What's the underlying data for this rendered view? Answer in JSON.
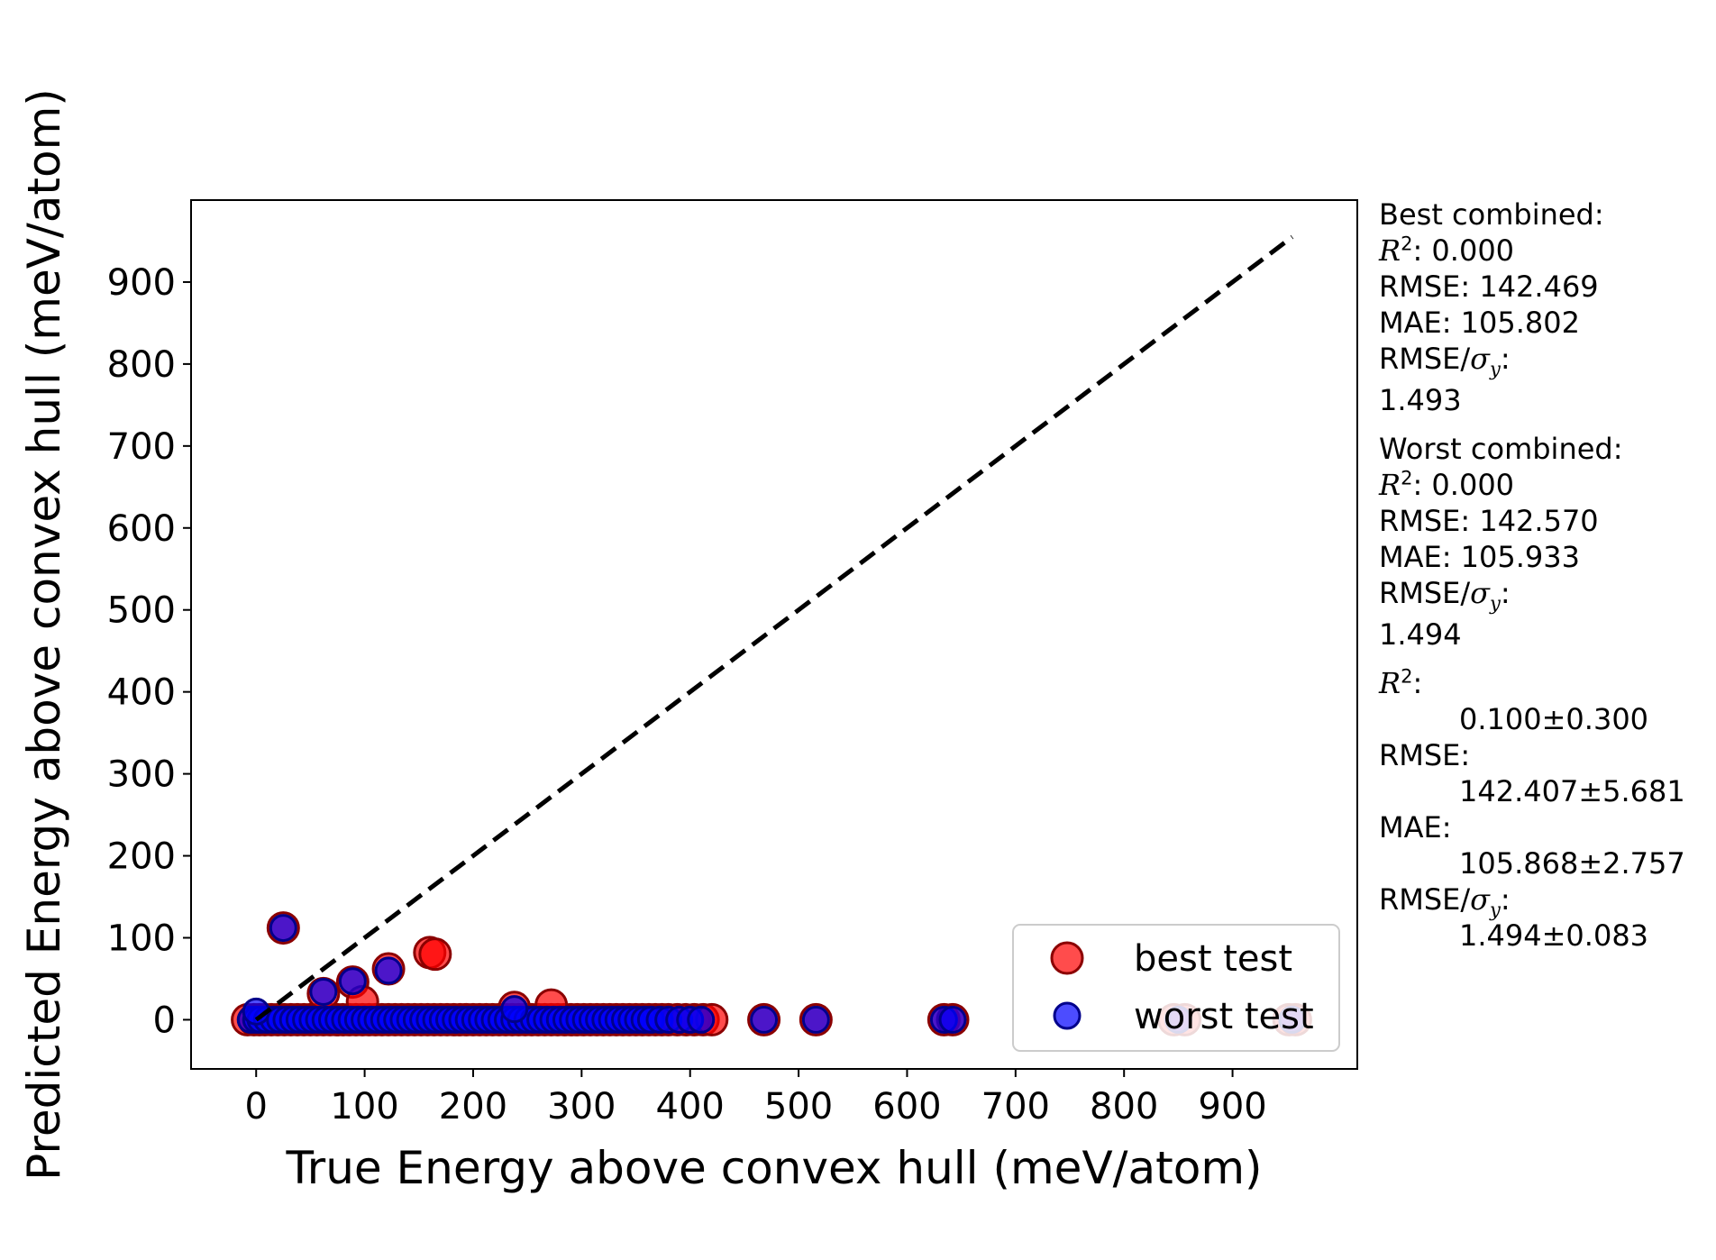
{
  "chart_data": {
    "type": "scatter",
    "xlabel": "True Energy above convex hull (meV/atom)",
    "ylabel": "Predicted Energy above convex hull (meV/atom)",
    "xlim": [
      -60,
      1015
    ],
    "ylim": [
      -60,
      1000
    ],
    "xticks": [
      0,
      100,
      200,
      300,
      400,
      500,
      600,
      700,
      800,
      900
    ],
    "yticks": [
      0,
      100,
      200,
      300,
      400,
      500,
      600,
      700,
      800,
      900
    ],
    "xtick_labels": [
      "0",
      "100",
      "200",
      "300",
      "400",
      "500",
      "600",
      "700",
      "800",
      "900"
    ],
    "ytick_labels": [
      "0",
      "100",
      "200",
      "300",
      "400",
      "500",
      "600",
      "700",
      "800",
      "900"
    ],
    "grid": false,
    "legend_position": "lower-right",
    "reference_line": {
      "style": "dashed",
      "color": "#000000",
      "from": [
        0,
        0
      ],
      "to": [
        955,
        955
      ]
    },
    "series": [
      {
        "name": "best test",
        "color": "#ff0000",
        "edge_color": "#8b0000",
        "points": [
          [
            -8,
            0
          ],
          [
            -2,
            0
          ],
          [
            3,
            0
          ],
          [
            8,
            0
          ],
          [
            14,
            0
          ],
          [
            20,
            0
          ],
          [
            26,
            0
          ],
          [
            32,
            0
          ],
          [
            38,
            0
          ],
          [
            44,
            0
          ],
          [
            50,
            0
          ],
          [
            56,
            0
          ],
          [
            62,
            0
          ],
          [
            68,
            0
          ],
          [
            74,
            0
          ],
          [
            80,
            0
          ],
          [
            86,
            0
          ],
          [
            92,
            0
          ],
          [
            98,
            0
          ],
          [
            104,
            0
          ],
          [
            110,
            0
          ],
          [
            116,
            0
          ],
          [
            122,
            0
          ],
          [
            128,
            0
          ],
          [
            134,
            0
          ],
          [
            140,
            0
          ],
          [
            146,
            0
          ],
          [
            152,
            0
          ],
          [
            158,
            0
          ],
          [
            164,
            0
          ],
          [
            170,
            0
          ],
          [
            176,
            0
          ],
          [
            182,
            0
          ],
          [
            188,
            0
          ],
          [
            194,
            0
          ],
          [
            200,
            0
          ],
          [
            206,
            0
          ],
          [
            212,
            0
          ],
          [
            218,
            0
          ],
          [
            224,
            0
          ],
          [
            230,
            0
          ],
          [
            236,
            0
          ],
          [
            242,
            0
          ],
          [
            248,
            0
          ],
          [
            254,
            0
          ],
          [
            260,
            0
          ],
          [
            266,
            0
          ],
          [
            272,
            0
          ],
          [
            278,
            0
          ],
          [
            284,
            0
          ],
          [
            290,
            0
          ],
          [
            296,
            0
          ],
          [
            302,
            0
          ],
          [
            308,
            0
          ],
          [
            314,
            0
          ],
          [
            320,
            0
          ],
          [
            326,
            0
          ],
          [
            332,
            0
          ],
          [
            338,
            0
          ],
          [
            344,
            0
          ],
          [
            350,
            0
          ],
          [
            356,
            0
          ],
          [
            362,
            0
          ],
          [
            368,
            0
          ],
          [
            374,
            0
          ],
          [
            380,
            0
          ],
          [
            388,
            0
          ],
          [
            396,
            0
          ],
          [
            404,
            0
          ],
          [
            412,
            0
          ],
          [
            420,
            0
          ],
          [
            468,
            0
          ],
          [
            516,
            0
          ],
          [
            634,
            0
          ],
          [
            642,
            0
          ],
          [
            846,
            0
          ],
          [
            856,
            0
          ],
          [
            952,
            0
          ],
          [
            958,
            0
          ],
          [
            25,
            112
          ],
          [
            62,
            32
          ],
          [
            89,
            46
          ],
          [
            98,
            22
          ],
          [
            122,
            62
          ],
          [
            160,
            82
          ],
          [
            165,
            80
          ],
          [
            238,
            15
          ],
          [
            272,
            18
          ]
        ]
      },
      {
        "name": "worst test",
        "color": "#0000ff",
        "edge_color": "#00008b",
        "points": [
          [
            -5,
            0
          ],
          [
            0,
            0
          ],
          [
            4,
            0
          ],
          [
            10,
            0
          ],
          [
            16,
            0
          ],
          [
            22,
            0
          ],
          [
            28,
            0
          ],
          [
            34,
            0
          ],
          [
            40,
            0
          ],
          [
            46,
            0
          ],
          [
            52,
            0
          ],
          [
            58,
            0
          ],
          [
            64,
            0
          ],
          [
            70,
            0
          ],
          [
            76,
            0
          ],
          [
            82,
            0
          ],
          [
            88,
            0
          ],
          [
            94,
            0
          ],
          [
            100,
            0
          ],
          [
            106,
            0
          ],
          [
            112,
            0
          ],
          [
            118,
            0
          ],
          [
            124,
            0
          ],
          [
            130,
            0
          ],
          [
            136,
            0
          ],
          [
            142,
            0
          ],
          [
            148,
            0
          ],
          [
            154,
            0
          ],
          [
            160,
            0
          ],
          [
            166,
            0
          ],
          [
            172,
            0
          ],
          [
            178,
            0
          ],
          [
            184,
            0
          ],
          [
            190,
            0
          ],
          [
            196,
            0
          ],
          [
            202,
            0
          ],
          [
            208,
            0
          ],
          [
            214,
            0
          ],
          [
            220,
            0
          ],
          [
            226,
            0
          ],
          [
            232,
            0
          ],
          [
            238,
            0
          ],
          [
            244,
            0
          ],
          [
            250,
            0
          ],
          [
            256,
            0
          ],
          [
            262,
            0
          ],
          [
            268,
            0
          ],
          [
            274,
            0
          ],
          [
            280,
            0
          ],
          [
            286,
            0
          ],
          [
            292,
            0
          ],
          [
            298,
            0
          ],
          [
            304,
            0
          ],
          [
            310,
            0
          ],
          [
            316,
            0
          ],
          [
            322,
            0
          ],
          [
            328,
            0
          ],
          [
            334,
            0
          ],
          [
            340,
            0
          ],
          [
            346,
            0
          ],
          [
            352,
            0
          ],
          [
            358,
            0
          ],
          [
            364,
            0
          ],
          [
            372,
            0
          ],
          [
            380,
            0
          ],
          [
            390,
            0
          ],
          [
            400,
            0
          ],
          [
            410,
            0
          ],
          [
            468,
            0
          ],
          [
            516,
            0
          ],
          [
            634,
            0
          ],
          [
            642,
            0
          ],
          [
            850,
            0
          ],
          [
            955,
            0
          ],
          [
            0,
            10
          ],
          [
            25,
            112
          ],
          [
            62,
            34
          ],
          [
            89,
            47
          ],
          [
            122,
            60
          ],
          [
            238,
            13
          ]
        ]
      }
    ]
  },
  "stats": {
    "best_heading": "Best combined:",
    "best_r2": ": 0.000",
    "best_rmse": "RMSE: 142.469",
    "best_mae": "MAE: 105.802",
    "best_ratio_label": ":",
    "best_ratio_value": "1.493",
    "worst_heading": "Worst combined:",
    "worst_r2": ": 0.000",
    "worst_rmse": "RMSE: 142.570",
    "worst_mae": "MAE: 105.933",
    "worst_ratio_label": ":",
    "worst_ratio_value": "1.494",
    "mean_r2_label": ":",
    "mean_r2_value": "0.100±0.300",
    "mean_rmse_label": "RMSE:",
    "mean_rmse_value": "142.407±5.681",
    "mean_mae_label": "MAE:",
    "mean_mae_value": "105.868±2.757",
    "mean_ratio_label": ":",
    "mean_ratio_value": "1.494±0.083"
  }
}
